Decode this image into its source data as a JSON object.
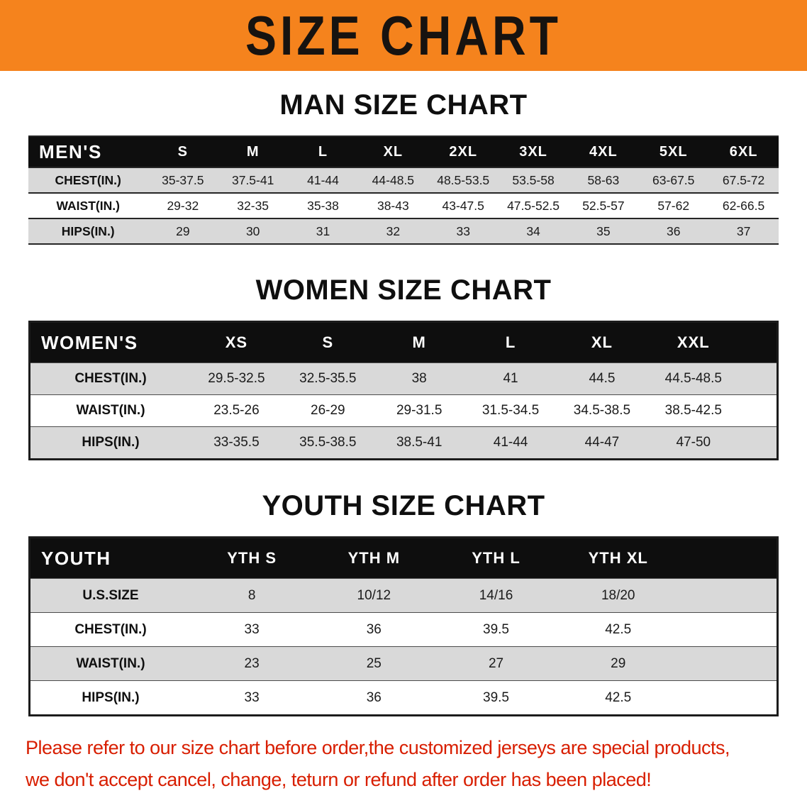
{
  "banner": {
    "title": "SIZE CHART",
    "bg_color": "#F5831D",
    "text_color": "#171310"
  },
  "chart_data": [
    {
      "type": "table",
      "title": "MAN SIZE CHART",
      "header": [
        "MEN'S",
        "S",
        "M",
        "L",
        "XL",
        "2XL",
        "3XL",
        "4XL",
        "5XL",
        "6XL"
      ],
      "rows": [
        [
          "CHEST(IN.)",
          "35-37.5",
          "37.5-41",
          "41-44",
          "44-48.5",
          "48.5-53.5",
          "53.5-58",
          "58-63",
          "63-67.5",
          "67.5-72"
        ],
        [
          "WAIST(IN.)",
          "29-32",
          "32-35",
          "35-38",
          "38-43",
          "43-47.5",
          "47.5-52.5",
          "52.5-57",
          "57-62",
          "62-66.5"
        ],
        [
          "HIPS(IN.)",
          "29",
          "30",
          "31",
          "32",
          "33",
          "34",
          "35",
          "36",
          "37"
        ]
      ]
    },
    {
      "type": "table",
      "title": "WOMEN SIZE CHART",
      "header": [
        "WOMEN'S",
        "XS",
        "S",
        "M",
        "L",
        "XL",
        "XXL"
      ],
      "rows": [
        [
          "CHEST(IN.)",
          "29.5-32.5",
          "32.5-35.5",
          "38",
          "41",
          "44.5",
          "44.5-48.5"
        ],
        [
          "WAIST(IN.)",
          "23.5-26",
          "26-29",
          "29-31.5",
          "31.5-34.5",
          "34.5-38.5",
          "38.5-42.5"
        ],
        [
          "HIPS(IN.)",
          "33-35.5",
          "35.5-38.5",
          "38.5-41",
          "41-44",
          "44-47",
          "47-50"
        ]
      ]
    },
    {
      "type": "table",
      "title": "YOUTH SIZE CHART",
      "header": [
        "YOUTH",
        "YTH S",
        "YTH M",
        "YTH L",
        "YTH XL"
      ],
      "rows": [
        [
          "U.S.SIZE",
          "8",
          "10/12",
          "14/16",
          "18/20"
        ],
        [
          "CHEST(IN.)",
          "33",
          "36",
          "39.5",
          "42.5"
        ],
        [
          "WAIST(IN.)",
          "23",
          "25",
          "27",
          "29"
        ],
        [
          "HIPS(IN.)",
          "33",
          "36",
          "39.5",
          "42.5"
        ]
      ]
    }
  ],
  "disclaimer": {
    "color": "#D81E00",
    "lines": [
      "Please refer to our size chart before order,the customized jerseys are special products,",
      "we don't accept cancel, change, teturn or refund after order has been placed!"
    ]
  }
}
